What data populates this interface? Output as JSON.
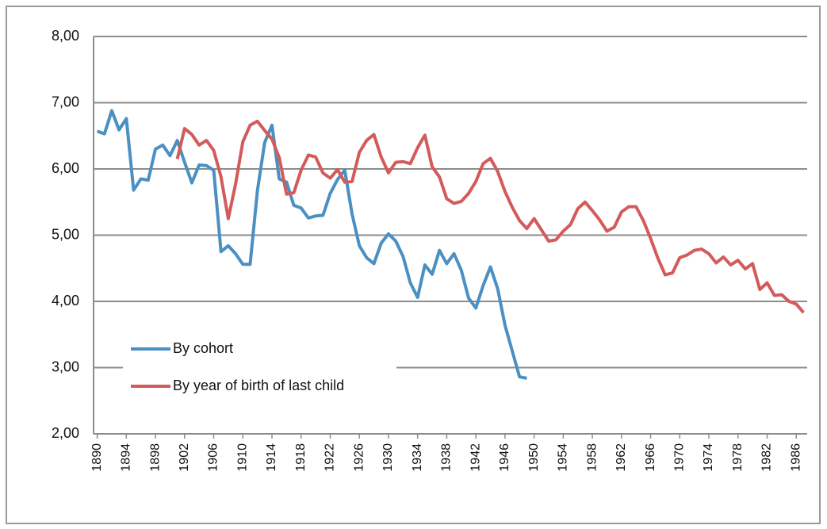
{
  "chart_data": {
    "type": "line",
    "x": [
      1890,
      1891,
      1892,
      1893,
      1894,
      1895,
      1896,
      1897,
      1898,
      1899,
      1900,
      1901,
      1902,
      1903,
      1904,
      1905,
      1906,
      1907,
      1908,
      1909,
      1910,
      1911,
      1912,
      1913,
      1914,
      1915,
      1916,
      1917,
      1918,
      1919,
      1920,
      1921,
      1922,
      1923,
      1924,
      1925,
      1926,
      1927,
      1928,
      1929,
      1930,
      1931,
      1932,
      1933,
      1934,
      1935,
      1936,
      1937,
      1938,
      1939,
      1940,
      1941,
      1942,
      1943,
      1944,
      1945,
      1946,
      1947,
      1948,
      1949,
      1950,
      1951,
      1952,
      1953,
      1954,
      1955,
      1956,
      1957,
      1958,
      1959,
      1960,
      1961,
      1962,
      1963,
      1964,
      1965,
      1966,
      1967,
      1968,
      1969,
      1970,
      1971,
      1972,
      1973,
      1974,
      1975,
      1976,
      1977,
      1978,
      1979,
      1980,
      1981,
      1982,
      1983,
      1984,
      1985,
      1986,
      1987
    ],
    "series": [
      {
        "name": "By cohort",
        "color": "#4a90c2",
        "values": [
          6.57,
          6.53,
          6.88,
          6.59,
          6.76,
          5.68,
          5.85,
          5.83,
          6.3,
          6.36,
          6.2,
          6.43,
          6.1,
          5.79,
          6.06,
          6.05,
          5.98,
          4.75,
          4.84,
          4.72,
          4.56,
          4.56,
          5.67,
          6.4,
          6.66,
          5.85,
          5.8,
          5.45,
          5.41,
          5.26,
          5.29,
          5.3,
          5.63,
          5.84,
          5.98,
          5.32,
          4.84,
          4.66,
          4.57,
          4.88,
          5.02,
          4.91,
          4.68,
          4.28,
          4.06,
          4.55,
          4.41,
          4.77,
          4.57,
          4.72,
          4.47,
          4.05,
          3.9,
          4.24,
          4.52,
          4.19,
          3.64,
          3.25,
          2.86,
          2.84,
          null,
          null,
          null,
          null,
          null,
          null,
          null,
          null,
          null,
          null,
          null,
          null,
          null,
          null,
          null,
          null,
          null,
          null,
          null,
          null,
          null,
          null,
          null,
          null,
          null,
          null,
          null,
          null,
          null,
          null,
          null,
          null,
          null,
          null,
          null,
          null,
          null,
          null
        ]
      },
      {
        "name": "By year of birth of last child",
        "color": "#d35b5b",
        "values": [
          null,
          null,
          null,
          null,
          null,
          null,
          null,
          null,
          null,
          null,
          null,
          6.15,
          6.61,
          6.52,
          6.36,
          6.43,
          6.28,
          5.88,
          5.25,
          5.77,
          6.41,
          6.66,
          6.72,
          6.58,
          6.45,
          6.17,
          5.62,
          5.64,
          5.98,
          6.21,
          6.18,
          5.94,
          5.86,
          5.99,
          5.8,
          5.81,
          6.25,
          6.43,
          6.52,
          6.18,
          5.94,
          6.1,
          6.11,
          6.08,
          6.32,
          6.51,
          6.03,
          5.88,
          5.55,
          5.48,
          5.51,
          5.63,
          5.81,
          6.08,
          6.16,
          5.96,
          5.66,
          5.42,
          5.22,
          5.1,
          5.25,
          5.08,
          4.91,
          4.93,
          5.06,
          5.16,
          5.4,
          5.5,
          5.37,
          5.23,
          5.06,
          5.12,
          5.35,
          5.43,
          5.43,
          5.22,
          4.95,
          4.65,
          4.4,
          4.43,
          4.66,
          4.7,
          4.77,
          4.79,
          4.72,
          4.58,
          4.67,
          4.55,
          4.62,
          4.49,
          4.57,
          4.18,
          4.28,
          4.09,
          4.1,
          4.0,
          3.96,
          3.83
        ]
      }
    ],
    "xlim": [
      1889.5,
      1987.5
    ],
    "xticks": [
      1890,
      1894,
      1898,
      1902,
      1906,
      1910,
      1914,
      1918,
      1922,
      1926,
      1930,
      1934,
      1938,
      1942,
      1946,
      1950,
      1954,
      1958,
      1962,
      1966,
      1970,
      1974,
      1978,
      1982,
      1986
    ],
    "ylim": [
      2,
      8
    ],
    "yticks": [
      {
        "value": 2,
        "label": "2,00"
      },
      {
        "value": 3,
        "label": "3,00"
      },
      {
        "value": 4,
        "label": "4,00"
      },
      {
        "value": 5,
        "label": "5,00"
      },
      {
        "value": 6,
        "label": "6,00"
      },
      {
        "value": 7,
        "label": "7,00"
      },
      {
        "value": 8,
        "label": "8,00"
      }
    ],
    "grid": true,
    "legend": "lower left"
  }
}
